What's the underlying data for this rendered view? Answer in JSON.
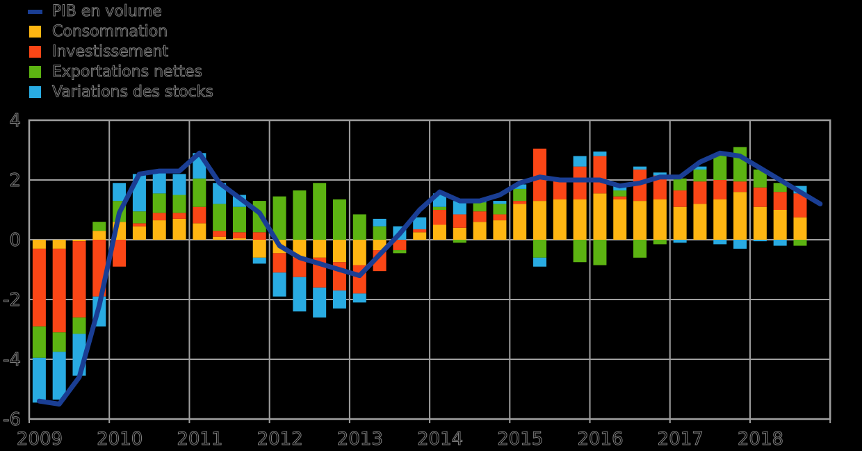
{
  "legend": {
    "items": [
      {
        "key": "pib-en-volume",
        "label": "PIB en volume",
        "color": "#1A3E94",
        "type": "line"
      },
      {
        "key": "consommation",
        "label": "Consommation",
        "color": "#FFB612",
        "type": "box"
      },
      {
        "key": "investissement",
        "label": "Investissement",
        "color": "#FA4616",
        "type": "box"
      },
      {
        "key": "exportations-nettes",
        "label": "Exportations nettes",
        "color": "#5CB312",
        "type": "box"
      },
      {
        "key": "variations-stocks",
        "label": "Variations des stocks",
        "color": "#29ABE2",
        "type": "box"
      }
    ]
  },
  "chart_data": {
    "type": "stacked-bar-with-line",
    "background": "#000000",
    "grid": true,
    "grid_color": "#A0A0A0",
    "legend_position": "top-left",
    "ylim": [
      -6,
      4
    ],
    "yticks": [
      4,
      2,
      0,
      -2,
      -4,
      -6
    ],
    "ytick_labels": [
      "4",
      "2",
      "0",
      "-2",
      "-4",
      "-6"
    ],
    "xtick_labels": [
      "2009",
      "2010",
      "2011",
      "2012",
      "2013",
      "2014",
      "2015",
      "2016",
      "2017",
      "2018"
    ],
    "categories": [
      "2009T1",
      "2009T2",
      "2009T3",
      "2009T4",
      "2010T1",
      "2010T2",
      "2010T3",
      "2010T4",
      "2011T1",
      "2011T2",
      "2011T3",
      "2011T4",
      "2012T1",
      "2012T2",
      "2012T3",
      "2012T4",
      "2013T1",
      "2013T2",
      "2013T3",
      "2013T4",
      "2014T1",
      "2014T2",
      "2014T3",
      "2014T4",
      "2015T1",
      "2015T2",
      "2015T3",
      "2015T4",
      "2016T1",
      "2016T2",
      "2016T3",
      "2016T4",
      "2017T1",
      "2017T2",
      "2017T3",
      "2017T4",
      "2018T1",
      "2018T2",
      "2018T3"
    ],
    "series": [
      {
        "key": "consommation",
        "name": "Consommation",
        "color": "#FFB612",
        "values": [
          -0.3,
          -0.3,
          -0.05,
          0.3,
          0.6,
          0.45,
          0.65,
          0.7,
          0.55,
          0.1,
          0.05,
          -0.6,
          -0.45,
          -0.6,
          -0.6,
          -0.75,
          -0.85,
          -0.35,
          0.0,
          0.25,
          0.5,
          0.4,
          0.6,
          0.65,
          1.2,
          1.3,
          1.35,
          1.35,
          1.55,
          1.35,
          1.3,
          1.35,
          1.1,
          1.2,
          1.35,
          1.6,
          1.1,
          1.0,
          0.75
        ]
      },
      {
        "key": "investissement",
        "name": "Investissement",
        "color": "#FA4616",
        "values": [
          -2.6,
          -2.8,
          -2.55,
          -1.9,
          -0.9,
          0.1,
          0.25,
          0.2,
          0.55,
          0.2,
          0.2,
          0.25,
          -0.65,
          -0.65,
          -1.0,
          -0.95,
          -0.95,
          -0.7,
          -0.35,
          0.1,
          0.5,
          0.45,
          0.35,
          0.2,
          0.1,
          1.75,
          0.65,
          1.1,
          1.25,
          0.1,
          1.05,
          0.8,
          0.55,
          0.75,
          0.65,
          0.35,
          0.65,
          0.6,
          0.8
        ]
      },
      {
        "key": "exportations-nettes",
        "name": "Exportations nettes",
        "color": "#5CB312",
        "values": [
          -1.05,
          -0.65,
          -0.55,
          0.3,
          0.7,
          0.4,
          0.65,
          0.6,
          0.95,
          0.9,
          0.85,
          1.05,
          1.45,
          1.65,
          1.9,
          1.35,
          0.85,
          0.45,
          -0.1,
          0.0,
          0.1,
          -0.1,
          0.3,
          0.35,
          0.4,
          -0.6,
          0.0,
          -0.75,
          -0.85,
          0.2,
          -0.6,
          -0.15,
          0.4,
          0.4,
          0.85,
          1.15,
          0.6,
          0.3,
          -0.2
        ]
      },
      {
        "key": "variations-stocks",
        "name": "Variations des stocks",
        "color": "#29ABE2",
        "values": [
          -1.5,
          -1.6,
          -1.4,
          -1.0,
          0.6,
          1.25,
          0.75,
          0.7,
          0.85,
          0.7,
          0.4,
          -0.2,
          -0.8,
          -1.15,
          -1.0,
          -0.6,
          -0.3,
          0.25,
          0.45,
          0.4,
          0.45,
          0.45,
          0.1,
          0.1,
          0.15,
          -0.3,
          0.0,
          0.35,
          0.15,
          0.15,
          0.1,
          0.1,
          -0.1,
          0.1,
          -0.15,
          -0.3,
          -0.05,
          -0.2,
          0.25
        ]
      }
    ],
    "line": {
      "key": "pib-en-volume",
      "name": "PIB en volume",
      "color": "#1A3E94",
      "categories": [
        "2009T1",
        "2009T2",
        "2009T3",
        "2009T4",
        "2010T1",
        "2010T2",
        "2010T3",
        "2010T4",
        "2011T1",
        "2011T2",
        "2011T3",
        "2011T4",
        "2012T1",
        "2012T2",
        "2012T3",
        "2012T4",
        "2013T1",
        "2013T2",
        "2013T3",
        "2013T4",
        "2014T1",
        "2014T2",
        "2014T3",
        "2014T4",
        "2015T1",
        "2015T2",
        "2015T3",
        "2015T4",
        "2016T1",
        "2016T2",
        "2016T3",
        "2016T4",
        "2017T1",
        "2017T2",
        "2017T3",
        "2017T4",
        "2018T1",
        "2018T2",
        "2018T3",
        "2018T4"
      ],
      "values": [
        -5.4,
        -5.5,
        -4.6,
        -2.2,
        0.9,
        2.2,
        2.3,
        2.3,
        2.9,
        1.9,
        1.4,
        0.9,
        -0.2,
        -0.6,
        -0.8,
        -1.0,
        -1.2,
        -0.5,
        0.2,
        1.0,
        1.6,
        1.3,
        1.3,
        1.5,
        1.9,
        2.1,
        2.0,
        2.0,
        2.0,
        1.8,
        1.9,
        2.1,
        2.1,
        2.6,
        2.9,
        2.8,
        2.4,
        2.0,
        1.6,
        1.2
      ]
    }
  }
}
